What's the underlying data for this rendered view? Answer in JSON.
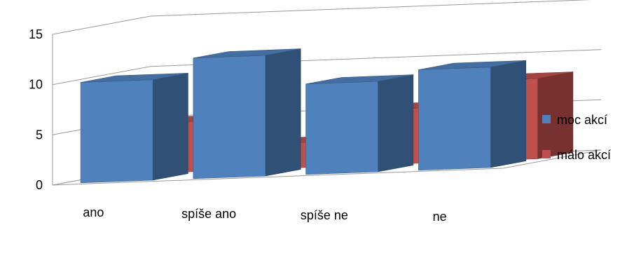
{
  "chart_data": {
    "type": "bar",
    "categories": [
      "ano",
      "spíše ano",
      "spíše ne",
      "ne"
    ],
    "series": [
      {
        "name": "moc akcí",
        "values": [
          10,
          12,
          9,
          10
        ],
        "color": "#4F81BD"
      },
      {
        "name": "málo akcí",
        "values": [
          5,
          2.5,
          5.5,
          8
        ],
        "color": "#C0504D"
      }
    ],
    "ylim": [
      0,
      15
    ],
    "yticks": [
      0,
      5,
      10,
      15
    ],
    "grid": true,
    "legend_position": "right",
    "style": "3d-perspective"
  }
}
